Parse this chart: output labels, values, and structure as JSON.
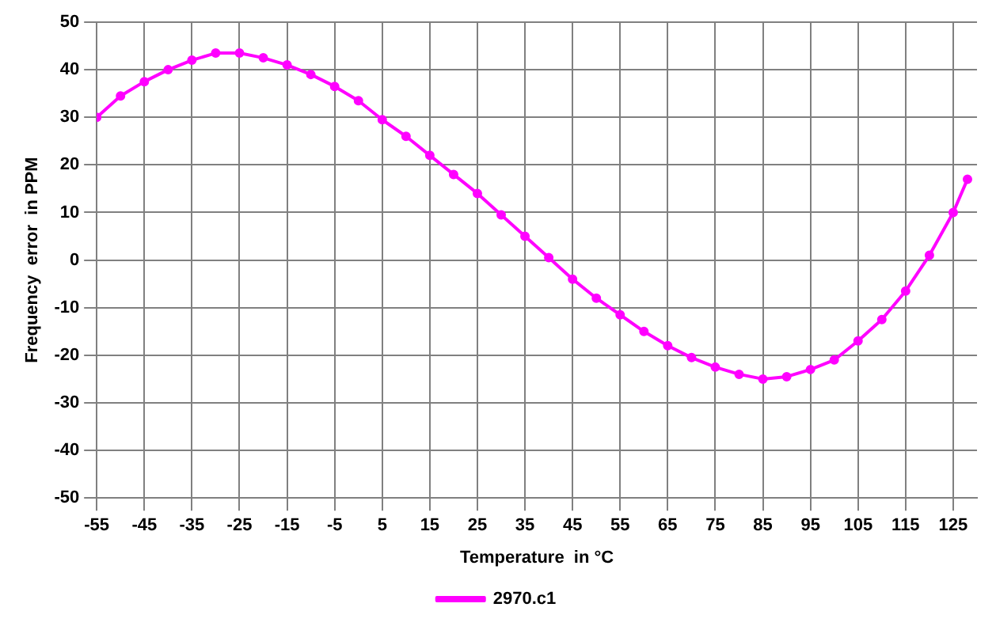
{
  "chart_data": {
    "type": "line",
    "xlabel": "Temperature  in °C",
    "ylabel": "Frequency  error  in PPM",
    "x": [
      -55,
      -50,
      -45,
      -40,
      -35,
      -30,
      -25,
      -20,
      -15,
      -10,
      -5,
      0,
      5,
      10,
      15,
      20,
      25,
      30,
      35,
      40,
      45,
      50,
      55,
      60,
      65,
      70,
      75,
      80,
      85,
      90,
      95,
      100,
      105,
      110,
      115,
      120,
      125,
      128
    ],
    "series": [
      {
        "name": "2970.c1",
        "color": "#ff00ff",
        "values": [
          30,
          34.5,
          37.5,
          40,
          42,
          43.5,
          43.5,
          42.5,
          41,
          39,
          36.5,
          33.5,
          29.5,
          26,
          22,
          18,
          14,
          9.5,
          5,
          0.5,
          -4,
          -8,
          -11.5,
          -15,
          -18,
          -20.5,
          -22.5,
          -24,
          -25,
          -24.5,
          -23,
          -21,
          -17,
          -12.5,
          -6.5,
          1,
          10,
          17
        ]
      }
    ],
    "xlim": [
      -55,
      130
    ],
    "xticks": [
      -55,
      -45,
      -35,
      -25,
      -15,
      -5,
      5,
      15,
      25,
      35,
      45,
      55,
      65,
      75,
      85,
      95,
      105,
      115,
      125
    ],
    "ylim": [
      -50,
      50
    ],
    "yticks": [
      -50,
      -40,
      -30,
      -20,
      -10,
      0,
      10,
      20,
      30,
      40,
      50
    ],
    "grid": true,
    "legend": "bottom",
    "marker": "circle",
    "line_style": "solid"
  }
}
